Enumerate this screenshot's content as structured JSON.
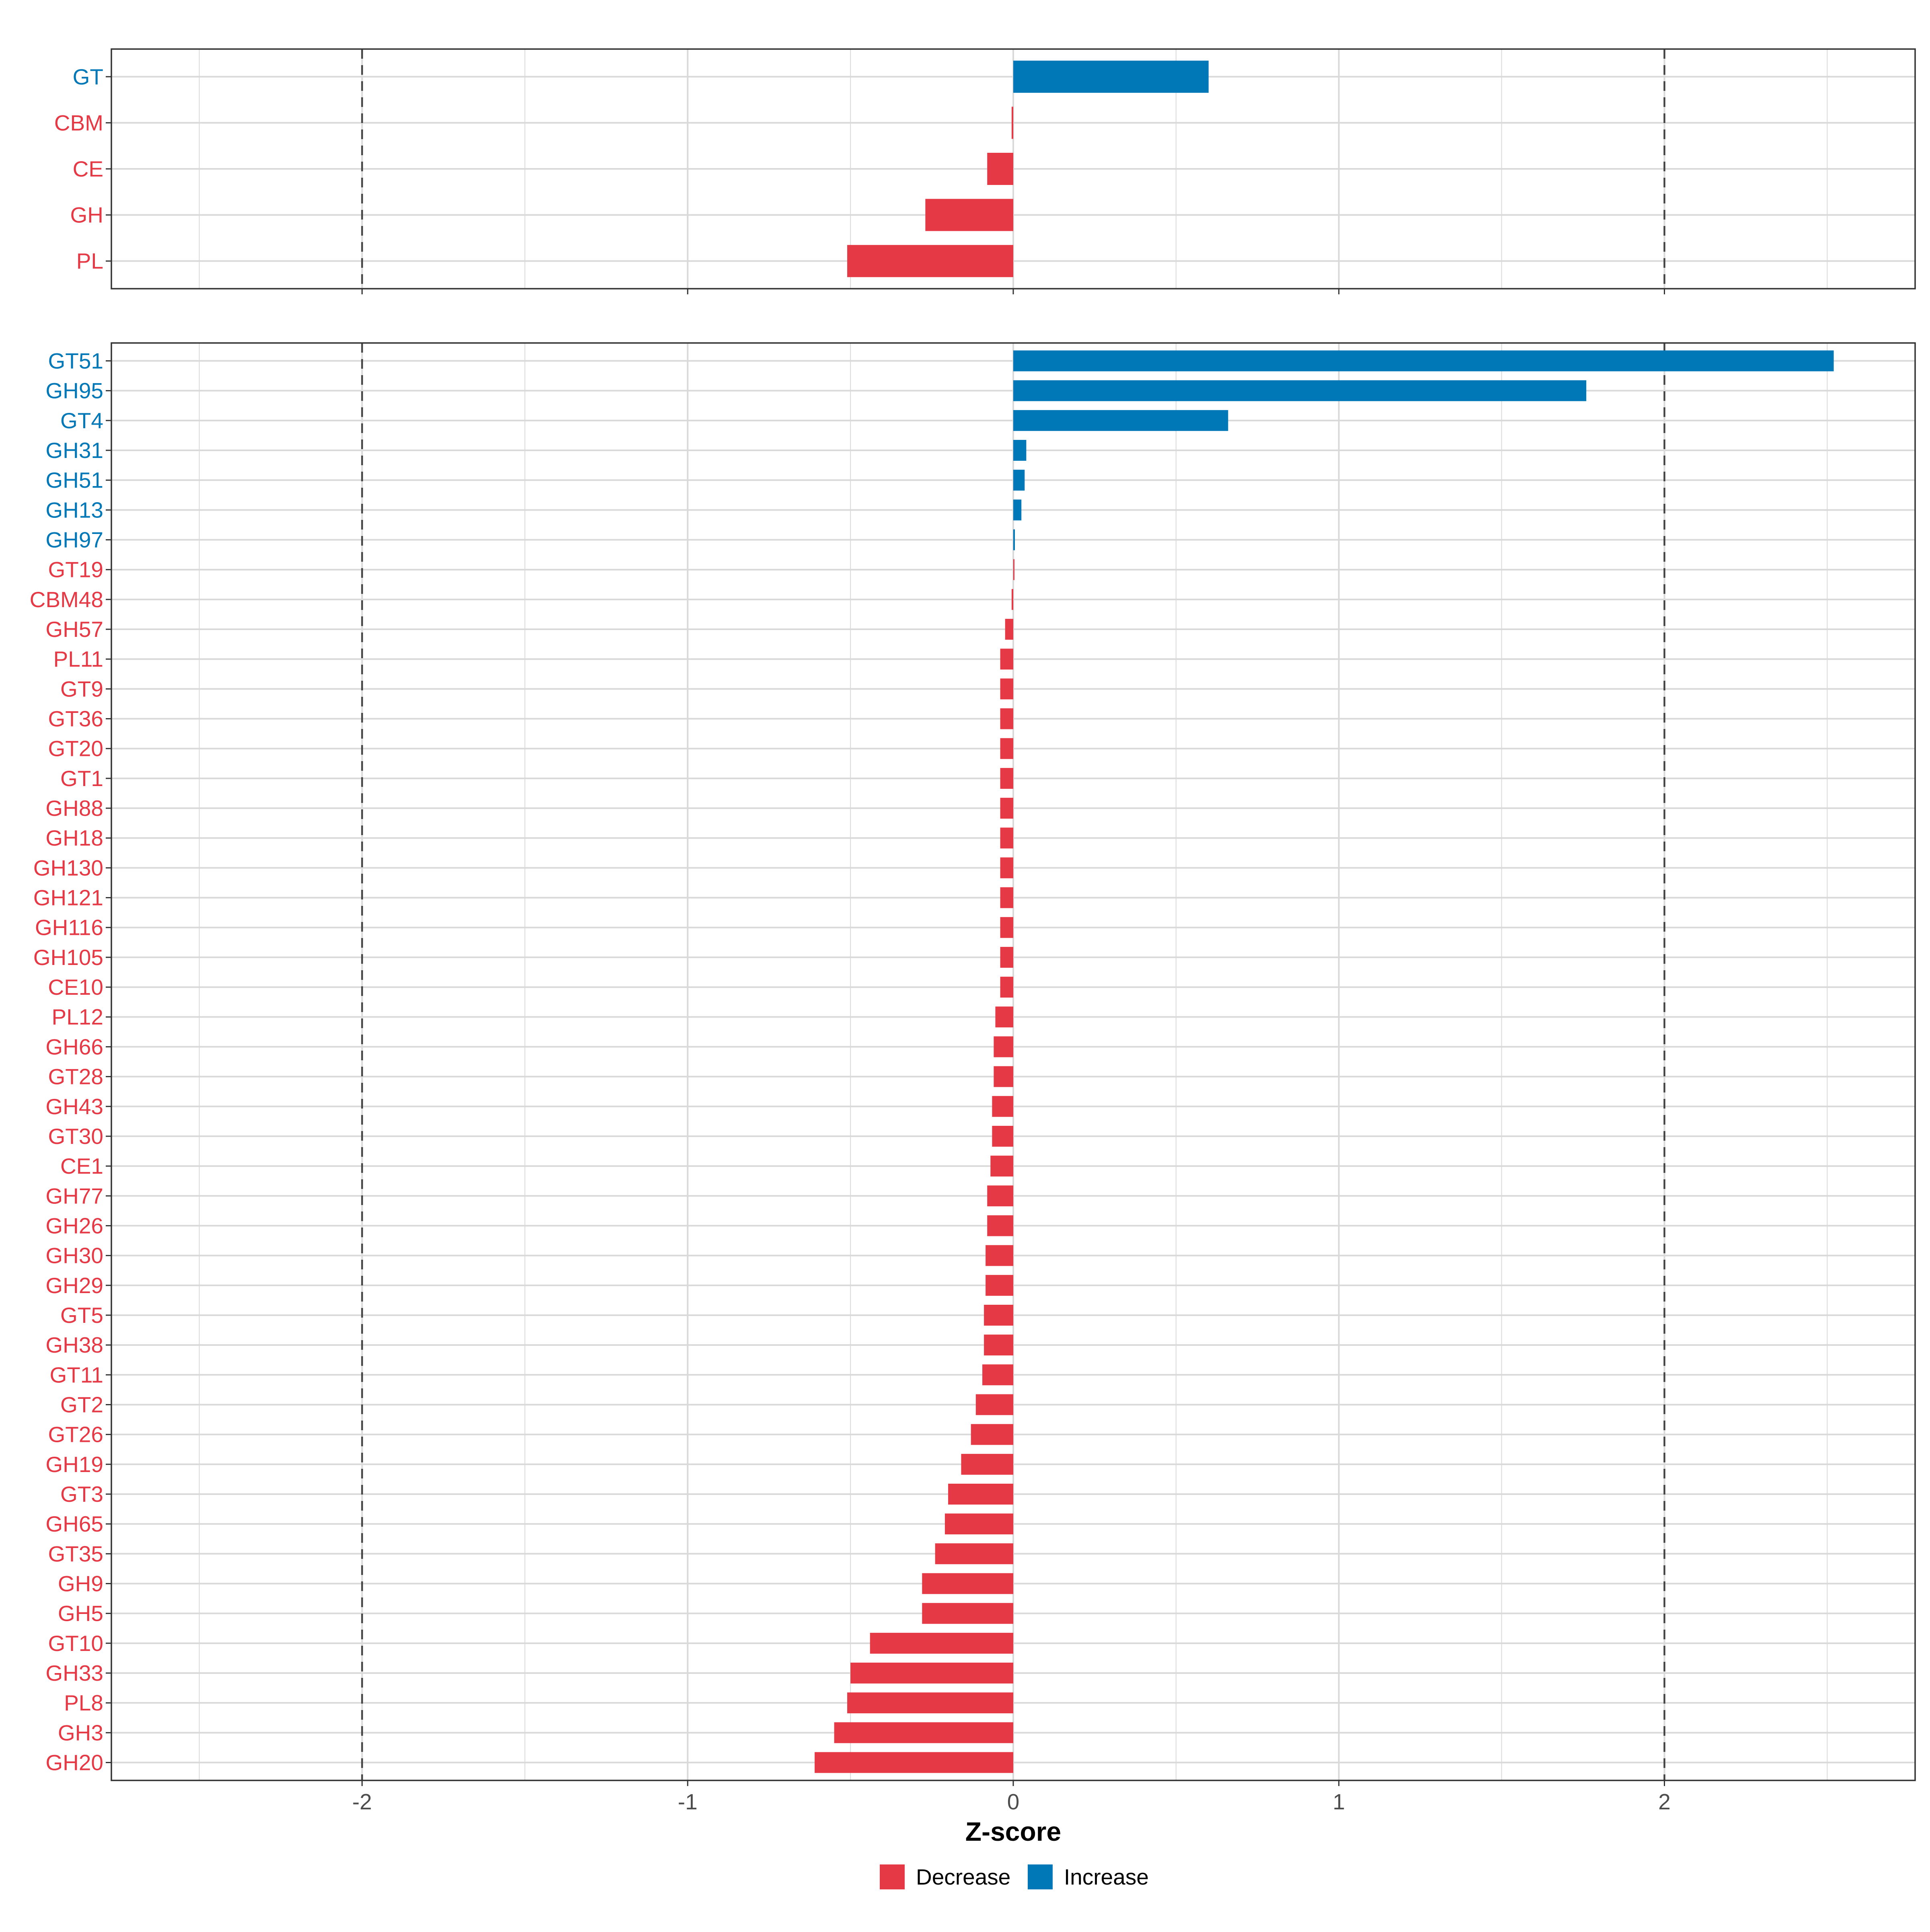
{
  "colors": {
    "decrease": "#E63946",
    "increase": "#0077B6",
    "grid": "#D9D9D9",
    "panel_border": "#333333",
    "threshold_line": "#444444",
    "axis_text": "#4D4D4D"
  },
  "chart_data": [
    {
      "type": "bar",
      "orientation": "horizontal",
      "panel": "top",
      "categories": [
        "GT",
        "CBM",
        "CE",
        "GH",
        "PL"
      ],
      "values": [
        0.6,
        -0.005,
        -0.08,
        -0.27,
        -0.51
      ],
      "xlim": [
        -2.77,
        2.77
      ],
      "thresholds": [
        -2,
        2
      ]
    },
    {
      "type": "bar",
      "orientation": "horizontal",
      "panel": "bottom",
      "categories": [
        "GT51",
        "GH95",
        "GT4",
        "GH31",
        "GH51",
        "GH13",
        "GH97",
        "GT19",
        "CBM48",
        "GH57",
        "PL11",
        "GT9",
        "GT36",
        "GT20",
        "GT1",
        "GH88",
        "GH18",
        "GH130",
        "GH121",
        "GH116",
        "GH105",
        "CE10",
        "PL12",
        "GH66",
        "GT28",
        "GH43",
        "GT30",
        "CE1",
        "GH77",
        "GH26",
        "GH30",
        "GH29",
        "GT5",
        "GH38",
        "GT11",
        "GT2",
        "GT26",
        "GH19",
        "GT3",
        "GH65",
        "GT35",
        "GH9",
        "GH5",
        "GT10",
        "GH33",
        "PL8",
        "GH3",
        "GH20"
      ],
      "values": [
        2.52,
        1.76,
        0.66,
        0.04,
        0.035,
        0.025,
        0.005,
        0.0,
        -0.005,
        -0.025,
        -0.04,
        -0.04,
        -0.04,
        -0.04,
        -0.04,
        -0.04,
        -0.04,
        -0.04,
        -0.04,
        -0.04,
        -0.04,
        -0.04,
        -0.055,
        -0.06,
        -0.06,
        -0.065,
        -0.065,
        -0.07,
        -0.08,
        -0.08,
        -0.085,
        -0.085,
        -0.09,
        -0.09,
        -0.095,
        -0.115,
        -0.13,
        -0.16,
        -0.2,
        -0.21,
        -0.24,
        -0.28,
        -0.28,
        -0.44,
        -0.5,
        -0.51,
        -0.55,
        -0.61
      ],
      "xlim": [
        -2.77,
        2.77
      ],
      "thresholds": [
        -2,
        2
      ],
      "x_ticks": [
        "-2",
        "-1",
        "0",
        "1",
        "2"
      ],
      "xlabel": "Z-score"
    }
  ],
  "legend": {
    "items": [
      {
        "label": "Decrease",
        "color_key": "decrease"
      },
      {
        "label": "Increase",
        "color_key": "increase"
      }
    ]
  }
}
